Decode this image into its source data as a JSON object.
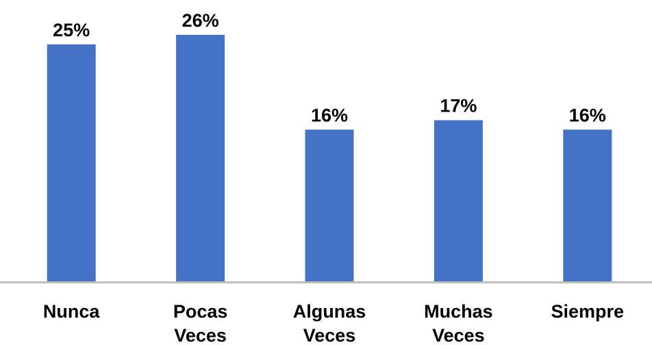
{
  "chart_data": {
    "type": "bar",
    "categories": [
      [
        "Nunca"
      ],
      [
        "Pocas",
        "Veces"
      ],
      [
        "Algunas",
        "Veces"
      ],
      [
        "Muchas",
        "Veces"
      ],
      [
        "Siempre"
      ]
    ],
    "values": [
      25,
      26,
      16,
      17,
      16
    ],
    "data_labels": [
      "25%",
      "26%",
      "16%",
      "17%",
      "16%"
    ],
    "title": "",
    "xlabel": "",
    "ylabel": "",
    "ylim": [
      0,
      28
    ],
    "grid": false,
    "legend": "none",
    "colors": {
      "bar": "#4472C4",
      "axis": "#BFBFBF",
      "text": "#000000"
    }
  }
}
